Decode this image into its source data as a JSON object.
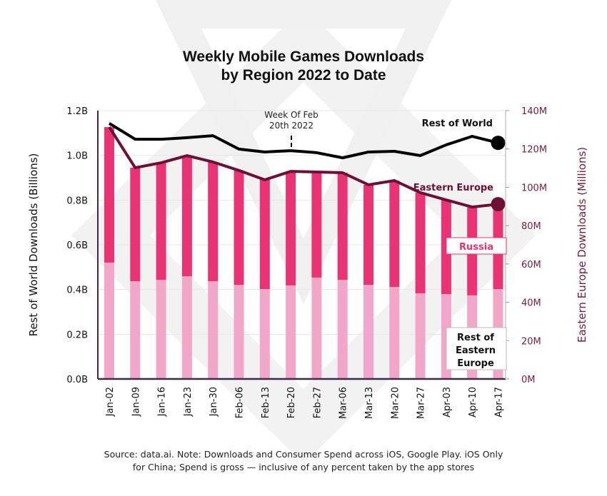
{
  "chart_data": {
    "type": "bar",
    "title": "Weekly Mobile Games Downloads",
    "subtitle": "by Region 2022 to Date",
    "categories": [
      "Jan-02",
      "Jan-09",
      "Jan-16",
      "Jan-23",
      "Jan-30",
      "Feb-06",
      "Feb-13",
      "Feb-20",
      "Feb-27",
      "Mar-06",
      "Mar-13",
      "Mar-20",
      "Mar-27",
      "Apr-03",
      "Apr-10",
      "Apr-17"
    ],
    "ylabel_left": "Rest of World Downloads (Billions)",
    "ylabel_right": "Eastern Europe  Downloads (Millions)",
    "ylim_left": [
      0,
      1.2
    ],
    "ylim_right": [
      0,
      140
    ],
    "yticks_left": [
      "0.0B",
      "0.2B",
      "0.4B",
      "0.6B",
      "0.8B",
      "1.0B",
      "1.2B"
    ],
    "yticks_right": [
      "0M",
      "20M",
      "40M",
      "60M",
      "80M",
      "100M",
      "120M",
      "140M"
    ],
    "grid": true,
    "series": [
      {
        "name": "Rest of Eastern Europe",
        "kind": "stacked-bar",
        "axis": "right",
        "color": "#f2a7c9",
        "values": [
          60.7,
          51.0,
          51.7,
          53.6,
          51.0,
          49.1,
          46.9,
          48.8,
          52.9,
          51.7,
          49.1,
          48.0,
          44.7,
          44.3,
          43.6,
          46.9
        ]
      },
      {
        "name": "Russia",
        "kind": "stacked-bar",
        "axis": "right",
        "color": "#ea3374",
        "values": [
          70.7,
          59.2,
          61.1,
          62.9,
          62.2,
          59.7,
          57.0,
          59.5,
          55.1,
          55.9,
          52.2,
          55.5,
          52.5,
          49.1,
          46.1,
          44.3
        ]
      },
      {
        "name": "Eastern Europe",
        "kind": "line",
        "axis": "right",
        "color": "#6e0f35",
        "values": [
          131.4,
          110.2,
          112.8,
          116.5,
          113.2,
          108.8,
          103.9,
          108.3,
          108.0,
          107.6,
          101.3,
          103.5,
          97.2,
          93.4,
          89.7,
          91.2
        ]
      },
      {
        "name": "Rest of World",
        "kind": "line",
        "axis": "left",
        "color": "#000000",
        "values": [
          1.143,
          1.072,
          1.072,
          1.079,
          1.088,
          1.028,
          1.015,
          1.021,
          1.012,
          0.989,
          1.015,
          1.018,
          0.999,
          1.047,
          1.085,
          1.056
        ]
      }
    ],
    "series_labels": {
      "rest_of_world": "Rest of World",
      "eastern_europe": "Eastern Europe"
    },
    "legend": {
      "russia": "Russia",
      "rest_of_ee_line1": "Rest of",
      "rest_of_ee_line2": "Eastern",
      "rest_of_ee_line3": "Europe",
      "placement": "right"
    },
    "annotation": {
      "line1": "Week Of Feb",
      "line2": "20th 2022",
      "category": "Feb-20"
    }
  },
  "source_note": {
    "line1": "Source: data.ai. Note: Downloads and Consumer Spend across iOS, Google Play. iOS Only",
    "line2": "for China; Spend is gross — inclusive of any percent taken by the app stores"
  },
  "colors": {
    "left_axis": "#111111",
    "right_axis": "#7a1a3e",
    "axis_line": "#3b2a4f",
    "watermark": "#f0f0f0"
  }
}
